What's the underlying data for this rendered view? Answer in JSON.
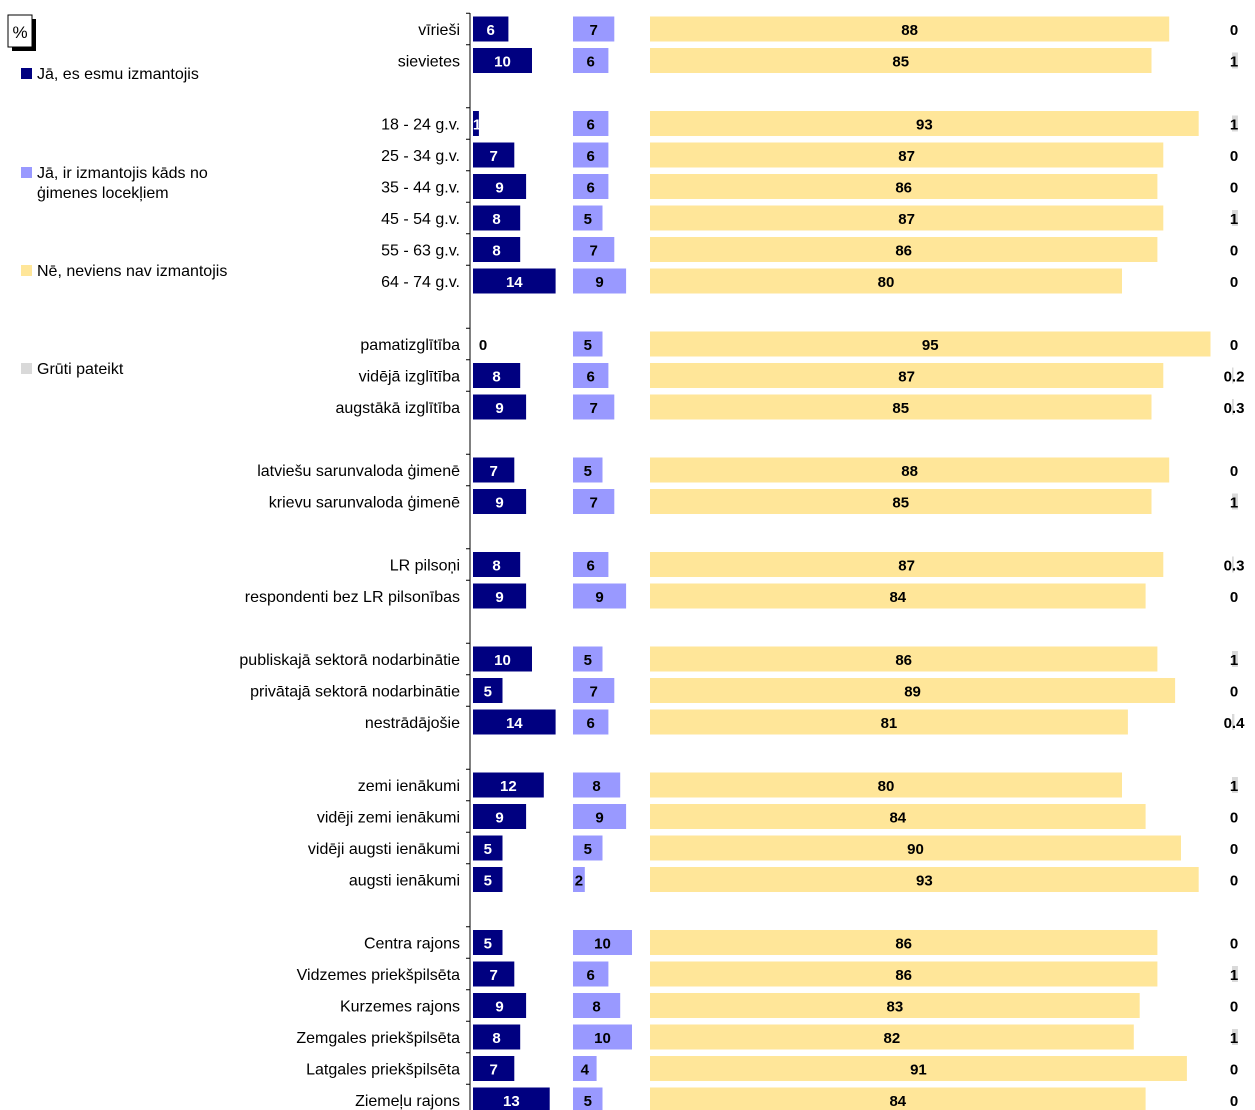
{
  "chart_data": {
    "type": "bar",
    "orientation": "horizontal",
    "layout": "side-by-side panels per series",
    "unit_label": "%",
    "colors": [
      "#000080",
      "#9999ff",
      "#ffe699",
      "#d9d9d9"
    ],
    "series_label_colors": [
      "#ffffff",
      "#000000",
      "#000000",
      "#000000"
    ],
    "legend_placement": "left",
    "grid": false,
    "series": [
      {
        "name": "Jā, es esmu izmantojis",
        "values": [
          "6",
          "10",
          "1",
          "7",
          "9",
          "8",
          "8",
          "14",
          "0",
          "8",
          "9",
          "7",
          "9",
          "8",
          "9",
          "10",
          "5",
          "14",
          "12",
          "9",
          "5",
          "5",
          "5",
          "7",
          "9",
          "8",
          "7",
          "13"
        ]
      },
      {
        "name": "Jā, ir izmantojis kāds no ģimenes locekļiem",
        "values": [
          "7",
          "6",
          "6",
          "6",
          "6",
          "5",
          "7",
          "9",
          "5",
          "6",
          "7",
          "5",
          "7",
          "6",
          "9",
          "5",
          "7",
          "6",
          "8",
          "9",
          "5",
          "2",
          "10",
          "6",
          "8",
          "10",
          "4",
          "5"
        ]
      },
      {
        "name": "Nē, neviens nav izmantojis",
        "values": [
          "88",
          "85",
          "93",
          "87",
          "86",
          "87",
          "86",
          "80",
          "95",
          "87",
          "85",
          "88",
          "85",
          "87",
          "84",
          "86",
          "89",
          "81",
          "80",
          "84",
          "90",
          "93",
          "86",
          "86",
          "83",
          "82",
          "91",
          "84"
        ]
      },
      {
        "name": "Grūti pateikt",
        "values": [
          "0",
          "1",
          "1",
          "0",
          "0",
          "1",
          "0",
          "0",
          "0",
          "0.2",
          "0.3",
          "0",
          "1",
          "0.3",
          "0",
          "1",
          "0",
          "0.4",
          "1",
          "0",
          "0",
          "0",
          "0",
          "1",
          "0",
          "1",
          "0",
          "0"
        ]
      }
    ],
    "categories": [
      "vīrieši",
      "sievietes",
      "18 - 24 g.v.",
      "25 - 34 g.v.",
      "35 - 44 g.v.",
      "45 - 54 g.v.",
      "55 - 63 g.v.",
      "64 - 74 g.v.",
      "pamatizglītība",
      "vidējā izglītība",
      "augstākā izglītība",
      "latviešu sarunvaloda ģimenē",
      "krievu sarunvaloda ģimenē",
      "LR pilsoņi",
      "respondenti bez LR pilsonības",
      "publiskajā sektorā nodarbinātie",
      "privātajā sektorā nodarbinātie",
      "nestrādājošie",
      "zemi ienākumi",
      "vidēji zemi ienākumi",
      "vidēji augsti ienākumi",
      "augsti ienākumi",
      "Centra rajons",
      "Vidzemes priekšpilsēta",
      "Kurzemes rajons",
      "Zemgales priekšpilsēta",
      "Latgales priekšpilsēta",
      "Ziemeļu rajons"
    ],
    "groups": [
      2,
      6,
      3,
      2,
      2,
      3,
      4,
      6
    ]
  }
}
